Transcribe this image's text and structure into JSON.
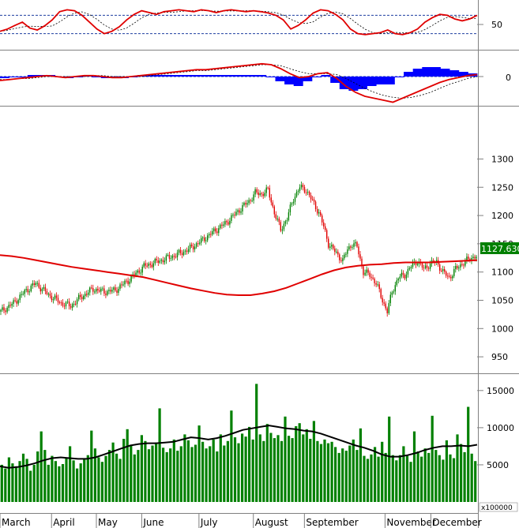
{
  "chart_data": {
    "type": "candlestick",
    "colors": {
      "up": "#008000",
      "down": "#e00000",
      "ma": "#e00000",
      "volume": "#008000",
      "volume_ma": "#000000",
      "macd_hist": "#0000ff",
      "rsi_band": "#1f3fa0",
      "grid": "#bfbfbf",
      "last_price_bg": "#008000"
    },
    "price_panel": {
      "y_ticks": [
        "1300",
        "1250",
        "1200",
        "1150",
        "1100",
        "1050",
        "1000",
        "950"
      ],
      "y_range": [
        925,
        1390
      ],
      "last_price_label": "1127.630",
      "last_price": 1127.63,
      "ma_values": [
        1130,
        1128,
        1125,
        1121,
        1117,
        1113,
        1109,
        1106,
        1103,
        1100,
        1097,
        1094,
        1091,
        1086,
        1081,
        1076,
        1071,
        1067,
        1063,
        1060,
        1059,
        1059,
        1062,
        1066,
        1072,
        1080,
        1088,
        1096,
        1103,
        1108,
        1111,
        1113,
        1114,
        1116,
        1117,
        1117,
        1117,
        1118,
        1119,
        1120,
        1121
      ],
      "key_closes": [
        [
          0,
          1030
        ],
        [
          8,
          1045
        ],
        [
          15,
          1065
        ],
        [
          22,
          1080
        ],
        [
          30,
          1060
        ],
        [
          38,
          1045
        ],
        [
          44,
          1040
        ],
        [
          50,
          1055
        ],
        [
          58,
          1070
        ],
        [
          65,
          1065
        ],
        [
          72,
          1068
        ],
        [
          80,
          1085
        ],
        [
          90,
          1110
        ],
        [
          100,
          1120
        ],
        [
          110,
          1130
        ],
        [
          118,
          1140
        ],
        [
          126,
          1155
        ],
        [
          134,
          1172
        ],
        [
          142,
          1188
        ],
        [
          150,
          1210
        ],
        [
          156,
          1225
        ],
        [
          160,
          1240
        ],
        [
          164,
          1238
        ],
        [
          168,
          1245
        ],
        [
          172,
          1205
        ],
        [
          176,
          1175
        ],
        [
          180,
          1195
        ],
        [
          184,
          1230
        ],
        [
          188,
          1250
        ],
        [
          192,
          1245
        ],
        [
          196,
          1225
        ],
        [
          200,
          1205
        ],
        [
          203,
          1180
        ],
        [
          206,
          1150
        ],
        [
          209,
          1140
        ],
        [
          212,
          1130
        ],
        [
          215,
          1120
        ],
        [
          218,
          1140
        ],
        [
          221,
          1150
        ],
        [
          224,
          1145
        ],
        [
          228,
          1100
        ],
        [
          232,
          1095
        ],
        [
          236,
          1080
        ],
        [
          240,
          1050
        ],
        [
          243,
          1030
        ],
        [
          246,
          1065
        ],
        [
          250,
          1090
        ],
        [
          254,
          1095
        ],
        [
          258,
          1110
        ],
        [
          262,
          1120
        ],
        [
          266,
          1105
        ],
        [
          270,
          1115
        ],
        [
          274,
          1118
        ],
        [
          278,
          1100
        ],
        [
          282,
          1090
        ],
        [
          286,
          1105
        ],
        [
          290,
          1115
        ],
        [
          294,
          1122
        ],
        [
          298,
          1128
        ]
      ]
    },
    "rsi_panel": {
      "y_ticks": [
        "50"
      ],
      "y_range": [
        0,
        100
      ],
      "upper_band": 70,
      "lower_band": 30,
      "values": [
        35,
        40,
        48,
        55,
        42,
        38,
        47,
        60,
        78,
        82,
        80,
        70,
        55,
        40,
        30,
        35,
        45,
        60,
        72,
        80,
        76,
        72,
        78,
        80,
        82,
        80,
        78,
        82,
        80,
        76,
        80,
        82,
        80,
        78,
        80,
        78,
        75,
        70,
        60,
        40,
        48,
        60,
        75,
        82,
        80,
        72,
        60,
        40,
        30,
        28,
        30,
        32,
        38,
        30,
        28,
        32,
        40,
        55,
        65,
        72,
        70,
        62,
        58,
        62,
        70
      ]
    },
    "macd_panel": {
      "y_ticks": [
        "0"
      ],
      "macd": [
        -4,
        -3,
        -2,
        -1,
        0,
        1,
        0,
        -1,
        0,
        1,
        1,
        0,
        -1,
        -1,
        0,
        1,
        2,
        3,
        4,
        5,
        6,
        7,
        7,
        8,
        9,
        10,
        11,
        12,
        13,
        12,
        8,
        3,
        -1,
        0,
        3,
        4,
        -2,
        -10,
        -16,
        -20,
        -22,
        -24,
        -26,
        -22,
        -18,
        -14,
        -10,
        -6,
        -3,
        -1,
        1,
        2
      ],
      "signal": [
        -3,
        -3,
        -2,
        -2,
        -1,
        0,
        0,
        0,
        0,
        0,
        1,
        1,
        0,
        0,
        0,
        0,
        1,
        2,
        3,
        4,
        5,
        6,
        6,
        7,
        8,
        9,
        10,
        11,
        12,
        12,
        11,
        8,
        5,
        3,
        3,
        3,
        2,
        -2,
        -7,
        -12,
        -16,
        -19,
        -21,
        -22,
        -21,
        -19,
        -16,
        -12,
        -8,
        -5,
        -2,
        0
      ],
      "hist": [
        -1,
        0,
        0,
        1,
        1,
        1,
        0,
        -1,
        0,
        1,
        0,
        -1,
        -1,
        -1,
        0,
        1,
        1,
        1,
        1,
        1,
        1,
        1,
        1,
        1,
        1,
        1,
        1,
        1,
        1,
        0,
        -3,
        -5,
        -6,
        -3,
        0,
        1,
        -4,
        -8,
        -9,
        -8,
        -6,
        -5,
        -5,
        0,
        3,
        5,
        6,
        6,
        5,
        4,
        3,
        2
      ]
    },
    "volume_panel": {
      "unit_label": "x100000",
      "y_ticks": [
        "15000",
        "10000",
        "5000"
      ],
      "y_range": [
        0,
        17000
      ],
      "bars": [
        5000,
        4500,
        6000,
        5200,
        4800,
        5500,
        6500,
        5800,
        4200,
        5000,
        6800,
        9500,
        7000,
        5000,
        6200,
        5500,
        4800,
        5100,
        6000,
        7500,
        5600,
        4500,
        5200,
        5800,
        6300,
        9600,
        7200,
        6000,
        5400,
        6200,
        7000,
        8000,
        6500,
        5800,
        8500,
        9800,
        7600,
        6400,
        7000,
        9000,
        8200,
        7100,
        7600,
        8000,
        12600,
        7300,
        6700,
        7200,
        8400,
        6900,
        7500,
        9100,
        8300,
        7400,
        7700,
        10300,
        8100,
        7200,
        7500,
        8400,
        6800,
        9100,
        7600,
        8200,
        12300,
        8700,
        7900,
        9200,
        8800,
        10100,
        8400,
        15900,
        9100,
        8200,
        10500,
        9300,
        8600,
        9000,
        8200,
        11500,
        8900,
        8600,
        10200,
        10600,
        9100,
        9800,
        8500,
        10900,
        8200,
        7800,
        8400,
        7900,
        8100,
        7400,
        6600,
        7200,
        6900,
        7600,
        8400,
        7000,
        9900,
        6200,
        5800,
        6400,
        7400,
        6100,
        8100,
        6600,
        11500,
        6300,
        5600,
        6300,
        7500,
        6200,
        5400,
        9500,
        6800,
        6100,
        7200,
        6600,
        11600,
        7000,
        6300,
        5700,
        8300,
        6400,
        5900,
        9100,
        7800,
        6700,
        12800,
        6500,
        5500
      ],
      "ma": [
        4800,
        4600,
        4700,
        4900,
        5200,
        5600,
        5900,
        6000,
        5900,
        5800,
        5800,
        6000,
        6400,
        6800,
        7200,
        7600,
        7800,
        7900,
        7900,
        8000,
        8100,
        8400,
        8700,
        8600,
        8400,
        8600,
        8900,
        9300,
        9700,
        9900,
        10100,
        10300,
        10100,
        9900,
        9800,
        9600,
        9500,
        9200,
        8800,
        8400,
        8000,
        7600,
        7300,
        6900,
        6400,
        6100,
        6100,
        6300,
        6600,
        7000,
        7300,
        7500,
        7500,
        7600,
        7500,
        7700
      ]
    },
    "x_axis": {
      "months": [
        "March",
        "April",
        "May",
        "June",
        "July",
        "August",
        "September",
        "November",
        "December"
      ],
      "month_positions": [
        0.0,
        0.108,
        0.202,
        0.297,
        0.417,
        0.531,
        0.638,
        0.807,
        0.903
      ]
    }
  }
}
